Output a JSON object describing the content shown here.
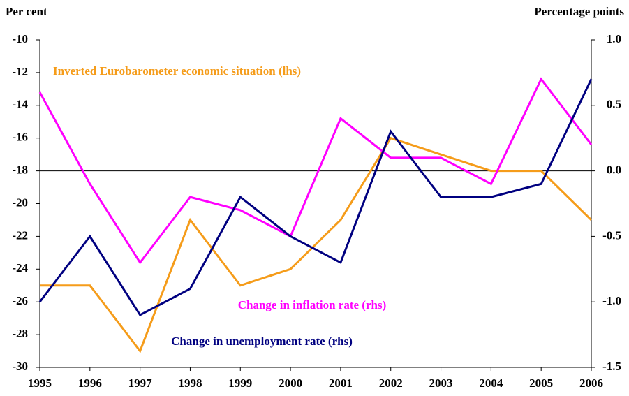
{
  "chart_data": {
    "type": "line",
    "y_label": "Per cent",
    "y2_label": "Percentage points",
    "categories": [
      "1995",
      "1996",
      "1997",
      "1998",
      "1999",
      "2000",
      "2001",
      "2002",
      "2003",
      "2004",
      "2005",
      "2006"
    ],
    "series": [
      {
        "name": "Inverted Eurobarometer economic situation (lhs)",
        "color": "#f59c1a",
        "values": [
          -25,
          -25,
          -29,
          -21,
          -25,
          -24,
          -21,
          -16,
          -17,
          -18,
          -18,
          -21
        ]
      },
      {
        "name": "Change in inflation rate (rhs)",
        "color": "#ff00ff",
        "axis": "y2",
        "values": [
          0.6,
          -0.1,
          -0.7,
          -0.2,
          -0.3,
          -0.5,
          0.4,
          0.1,
          0.1,
          -0.1,
          0.7,
          0.2
        ]
      },
      {
        "name": "Change in unemployment rate (rhs)",
        "color": "#000080",
        "axis": "y2",
        "values": [
          -1.0,
          -0.5,
          -1.1,
          -0.9,
          -0.2,
          -0.5,
          -0.7,
          0.3,
          -0.2,
          -0.2,
          -0.1,
          0.7
        ]
      }
    ],
    "ylim": [
      -30,
      -10
    ],
    "yticks": [
      -10,
      -12,
      -14,
      -16,
      -18,
      -20,
      -22,
      -24,
      -26,
      -28,
      -30
    ],
    "y2lim": [
      -1.5,
      1.0
    ],
    "y2ticks": [
      {
        "value": 1,
        "label": "1.0"
      },
      0.5,
      {
        "value": 0,
        "label": "0.0"
      },
      -0.5,
      {
        "value": -1,
        "label": "-1.0"
      },
      -1.5
    ]
  }
}
